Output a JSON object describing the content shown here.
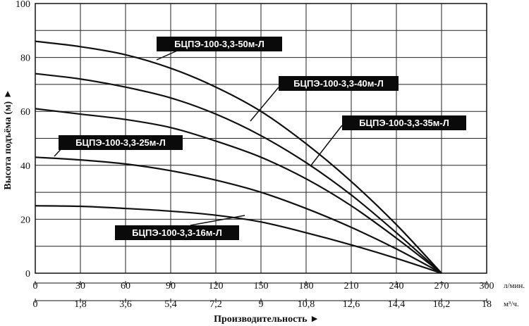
{
  "chart_data": {
    "type": "line",
    "xlabel": "Производительность ►",
    "ylabel": "Высота подъёма (м) ►",
    "x_unit_primary": "л/мин.",
    "x_unit_secondary": "м³/ч.",
    "xlim": [
      0,
      300
    ],
    "ylim": [
      0,
      100
    ],
    "x_ticks": [
      "0",
      "30",
      "60",
      "90",
      "120",
      "150",
      "180",
      "210",
      "240",
      "270",
      "300"
    ],
    "x2_ticks": [
      "0",
      "1,8",
      "3,6",
      "5,4",
      "7,2",
      "9",
      "10,8",
      "12,6",
      "14,4",
      "16,2",
      "18"
    ],
    "y_ticks": [
      "0",
      "20",
      "40",
      "60",
      "80",
      "100"
    ],
    "grid": true,
    "series": [
      {
        "name": "БЦПЭ-100-3,3-50м-Л",
        "x": [
          0,
          30,
          60,
          90,
          120,
          150,
          180,
          210,
          240,
          270
        ],
        "y": [
          86,
          84,
          81,
          76,
          69,
          60,
          48,
          34,
          18,
          0
        ]
      },
      {
        "name": "БЦПЭ-100-3,3-40м-Л",
        "x": [
          0,
          30,
          60,
          90,
          120,
          150,
          180,
          210,
          240,
          270
        ],
        "y": [
          74,
          72,
          69,
          65,
          59,
          51,
          41,
          29,
          15,
          0
        ]
      },
      {
        "name": "БЦПЭ-100-3,3-35м-Л",
        "x": [
          0,
          30,
          60,
          90,
          120,
          150,
          180,
          210,
          240,
          270
        ],
        "y": [
          61,
          59,
          57,
          54,
          49,
          43,
          35,
          25,
          13,
          0
        ]
      },
      {
        "name": "БЦПЭ-100-3,3-25м-Л",
        "x": [
          0,
          30,
          60,
          90,
          120,
          150,
          180,
          210,
          240,
          270
        ],
        "y": [
          43,
          42,
          40.5,
          38,
          34.5,
          30,
          24,
          17,
          9,
          0
        ]
      },
      {
        "name": "БЦПЭ-100-3,3-16м-Л",
        "x": [
          0,
          30,
          60,
          90,
          120,
          150,
          180,
          210,
          240,
          270
        ],
        "y": [
          25,
          24.8,
          24,
          23,
          21.5,
          19,
          15,
          10.5,
          5.5,
          0
        ]
      }
    ]
  }
}
